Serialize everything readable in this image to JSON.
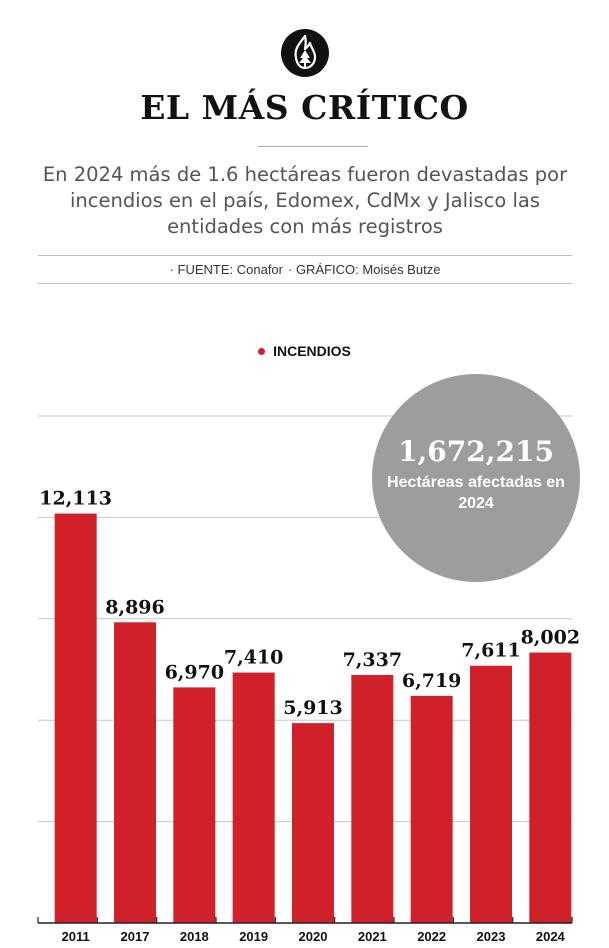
{
  "header": {
    "logo_icon": "flame-tree-icon",
    "title": "EL MÁS CRÍTICO",
    "subtitle": "En 2024 más de 1.6 hectáreas fueron devastadas por incendios en el país, Edomex, CdMx y Jalisco las entidades con más registros",
    "source": "· FUENTE: Conafor",
    "graphic": "· GRÁFICO: Moisés Butze"
  },
  "legend": {
    "label": "INCENDIOS",
    "color": "#d0202a"
  },
  "callout": {
    "value": "1,672,215",
    "label": "Hectáreas afectadas en 2024"
  },
  "chart_data": {
    "type": "bar",
    "categories": [
      "2011",
      "2017",
      "2018",
      "2019",
      "2020",
      "2021",
      "2022",
      "2023",
      "2024"
    ],
    "series": [
      {
        "name": "INCENDIOS",
        "values": [
          12113,
          8896,
          6970,
          7410,
          5913,
          7337,
          6719,
          7611,
          8002
        ],
        "labels": [
          "12,113",
          "8,896",
          "6,970",
          "7,410",
          "5,913",
          "7,337",
          "6,719",
          "7,611",
          "8,002"
        ]
      }
    ],
    "ylim": [
      0,
      15000
    ],
    "grid": true,
    "bar_color": "#d0202a",
    "legend_position": "top-center"
  }
}
